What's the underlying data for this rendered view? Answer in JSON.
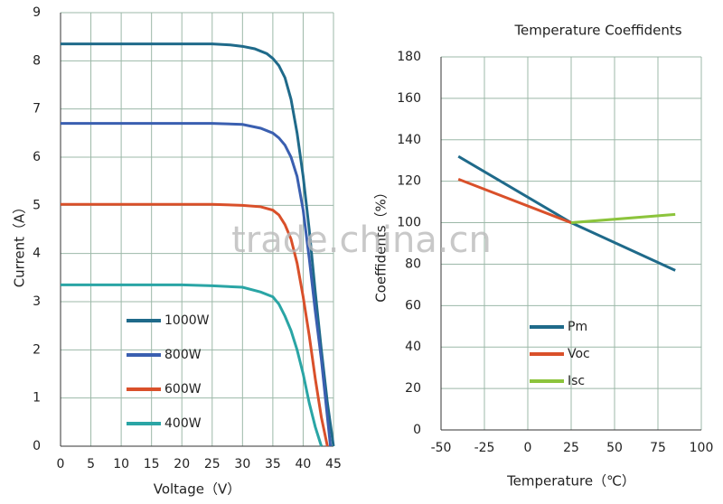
{
  "chart_data": [
    {
      "type": "line",
      "x_label": "Voltage（V）",
      "y_label": "Current（A）",
      "xlim": [
        0,
        45
      ],
      "xticks": [
        0,
        5,
        10,
        15,
        20,
        25,
        30,
        35,
        40,
        45
      ],
      "ylim": [
        0,
        9
      ],
      "yticks": [
        0,
        1,
        2,
        3,
        4,
        5,
        6,
        7,
        8,
        9
      ],
      "grid": true,
      "legend": "lower left",
      "series": [
        {
          "name": "1000W",
          "color": "#1f6a8a",
          "x": [
            0,
            5,
            10,
            15,
            20,
            25,
            28,
            30,
            32,
            34,
            35,
            36,
            37,
            38,
            39,
            40,
            41,
            42,
            43,
            44,
            45
          ],
          "values": [
            8.35,
            8.35,
            8.35,
            8.35,
            8.35,
            8.35,
            8.33,
            8.3,
            8.25,
            8.15,
            8.05,
            7.9,
            7.65,
            7.2,
            6.5,
            5.6,
            4.5,
            3.2,
            2.0,
            0.9,
            0
          ]
        },
        {
          "name": "800W",
          "color": "#3a5fb0",
          "x": [
            0,
            5,
            10,
            15,
            20,
            25,
            30,
            33,
            35,
            36,
            37,
            38,
            39,
            40,
            41,
            42,
            43,
            44,
            44.5
          ],
          "values": [
            6.7,
            6.7,
            6.7,
            6.7,
            6.7,
            6.7,
            6.68,
            6.6,
            6.5,
            6.4,
            6.25,
            6.0,
            5.6,
            4.9,
            3.9,
            2.8,
            1.8,
            0.6,
            0
          ]
        },
        {
          "name": "600W",
          "color": "#d9502a",
          "x": [
            0,
            5,
            10,
            15,
            20,
            25,
            30,
            33,
            35,
            36,
            37,
            38,
            39,
            40,
            41,
            42,
            43,
            44
          ],
          "values": [
            5.02,
            5.02,
            5.02,
            5.02,
            5.02,
            5.02,
            5.0,
            4.97,
            4.9,
            4.8,
            4.6,
            4.3,
            3.8,
            3.1,
            2.3,
            1.4,
            0.6,
            0
          ]
        },
        {
          "name": "400W",
          "color": "#2aa5a5",
          "x": [
            0,
            5,
            10,
            15,
            20,
            25,
            30,
            33,
            35,
            36,
            37,
            38,
            39,
            40,
            41,
            42,
            43
          ],
          "values": [
            3.35,
            3.35,
            3.35,
            3.35,
            3.35,
            3.33,
            3.3,
            3.2,
            3.1,
            2.95,
            2.7,
            2.4,
            2.0,
            1.5,
            0.9,
            0.4,
            0
          ]
        }
      ]
    },
    {
      "type": "line",
      "title": "Temperature Coeffidents",
      "x_label": "Temperature（℃）",
      "y_label": "Coeffidents（%）",
      "xlim": [
        -50,
        100
      ],
      "xticks": [
        -50,
        -25,
        0,
        25,
        50,
        75,
        100
      ],
      "ylim": [
        0,
        180
      ],
      "yticks": [
        0,
        20,
        40,
        60,
        80,
        100,
        120,
        140,
        160,
        180
      ],
      "grid": true,
      "legend": "lower left",
      "series": [
        {
          "name": "Pm",
          "color": "#1f6a8a",
          "x": [
            -40,
            25,
            85
          ],
          "values": [
            132,
            100,
            77
          ]
        },
        {
          "name": "Voc",
          "color": "#d9502a",
          "x": [
            -40,
            25
          ],
          "values": [
            121,
            100
          ]
        },
        {
          "name": "Isc",
          "color": "#8cc43c",
          "x": [
            25,
            85
          ],
          "values": [
            100,
            104
          ]
        }
      ]
    }
  ],
  "watermark": "trade.china.cn"
}
